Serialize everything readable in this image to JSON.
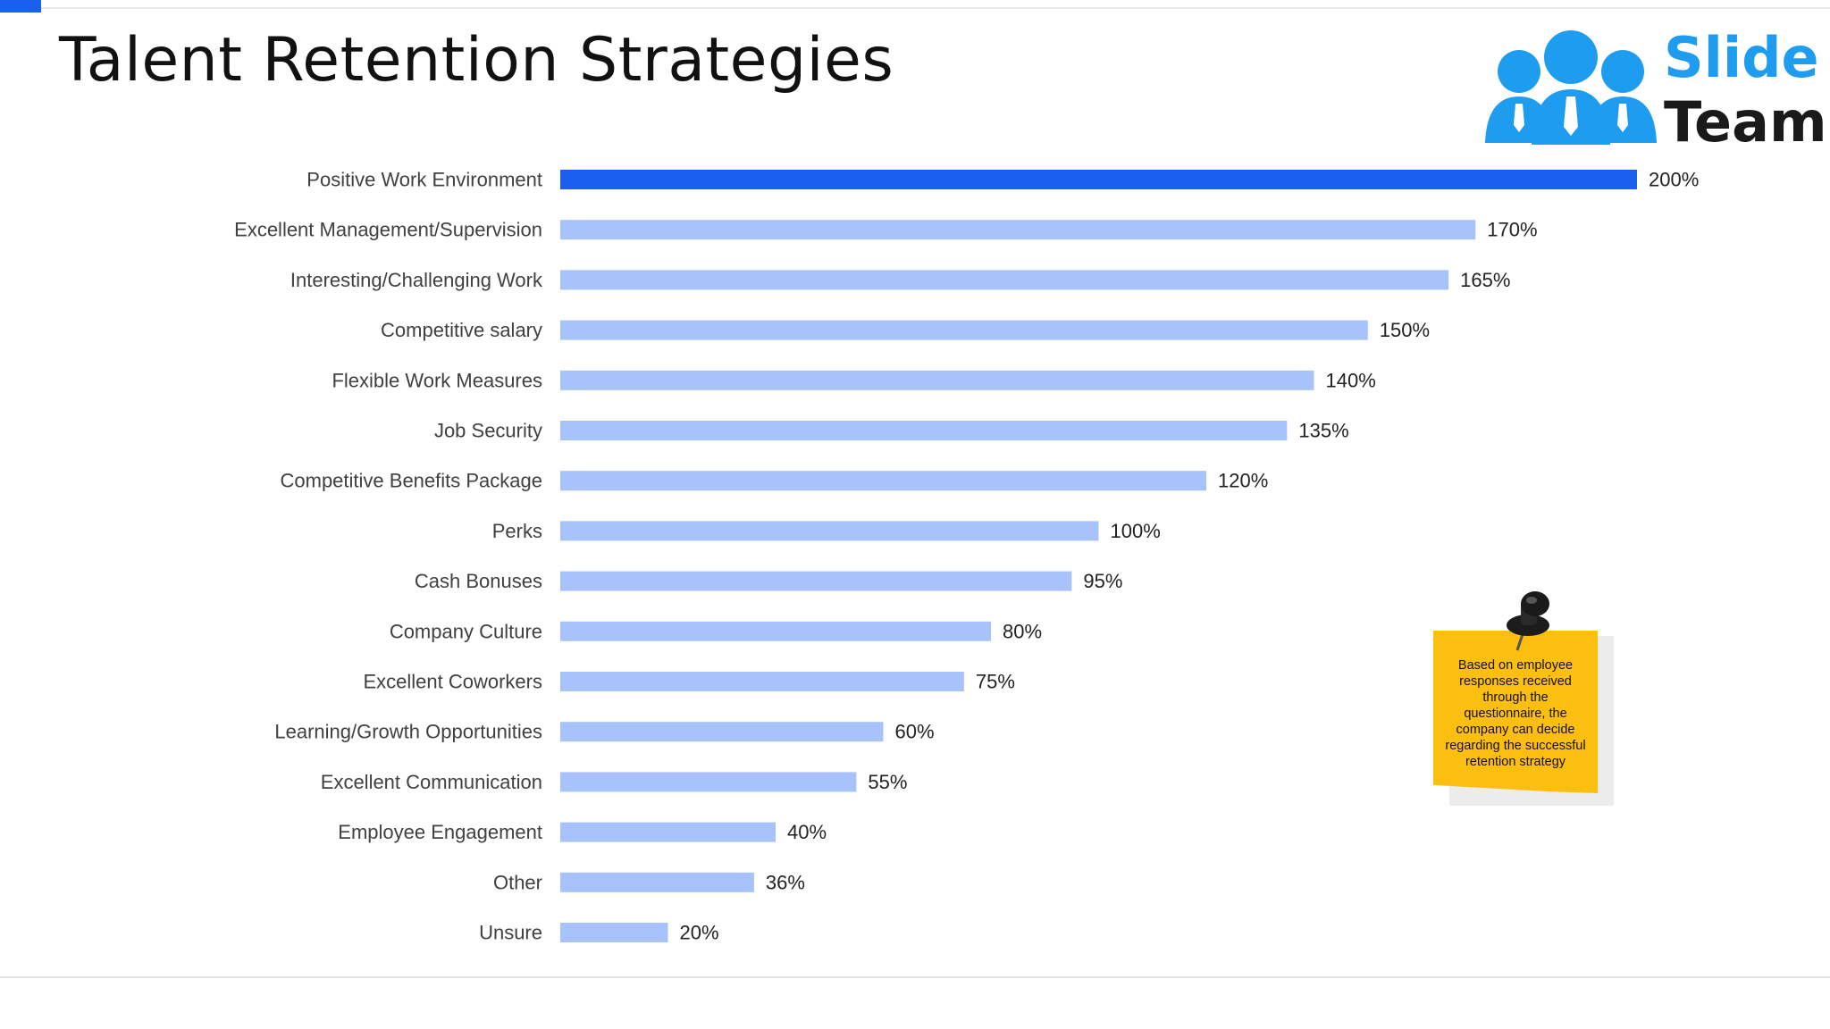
{
  "page": {
    "title": "Talent Retention Strategies"
  },
  "logo": {
    "line1": "Slide",
    "line2": "Team",
    "icon": "people-group-icon"
  },
  "colors": {
    "accent": "#1a5ff0",
    "bar": "#a8c2fb",
    "highlight_bar": "#1a5ff0",
    "label_text": "#404040",
    "logo_blue": "#1e9cf0",
    "note_yellow": "#fcbf10"
  },
  "note": {
    "text": "Based on employee responses  received through the questionnaire, the company can decide regarding the successful retention strategy",
    "icon": "pushpin-icon"
  },
  "chart_data": {
    "type": "bar",
    "orientation": "horizontal",
    "title": "",
    "xlabel": "",
    "ylabel": "",
    "grid": false,
    "legend": "none",
    "value_suffix": "%",
    "xlim": [
      0,
      200
    ],
    "categories": [
      "Positive Work Environment",
      "Excellent Management/Supervision",
      "Interesting/Challenging Work",
      "Competitive salary",
      "Flexible Work Measures",
      "Job Security",
      "Competitive Benefits Package",
      "Perks",
      "Cash Bonuses",
      "Company Culture",
      "Excellent Coworkers",
      "Learning/Growth Opportunities",
      "Excellent Communication",
      "Employee Engagement",
      "Other",
      "Unsure"
    ],
    "values": [
      200,
      170,
      165,
      150,
      140,
      135,
      120,
      100,
      95,
      80,
      75,
      60,
      55,
      40,
      36,
      20
    ],
    "data_labels": [
      "200%",
      "170%",
      "165%",
      "150%",
      "140%",
      "135%",
      "120%",
      "100%",
      "95%",
      "80%",
      "75%",
      "60%",
      "55%",
      "40%",
      "36%",
      "20%"
    ],
    "highlight_index": 0
  }
}
